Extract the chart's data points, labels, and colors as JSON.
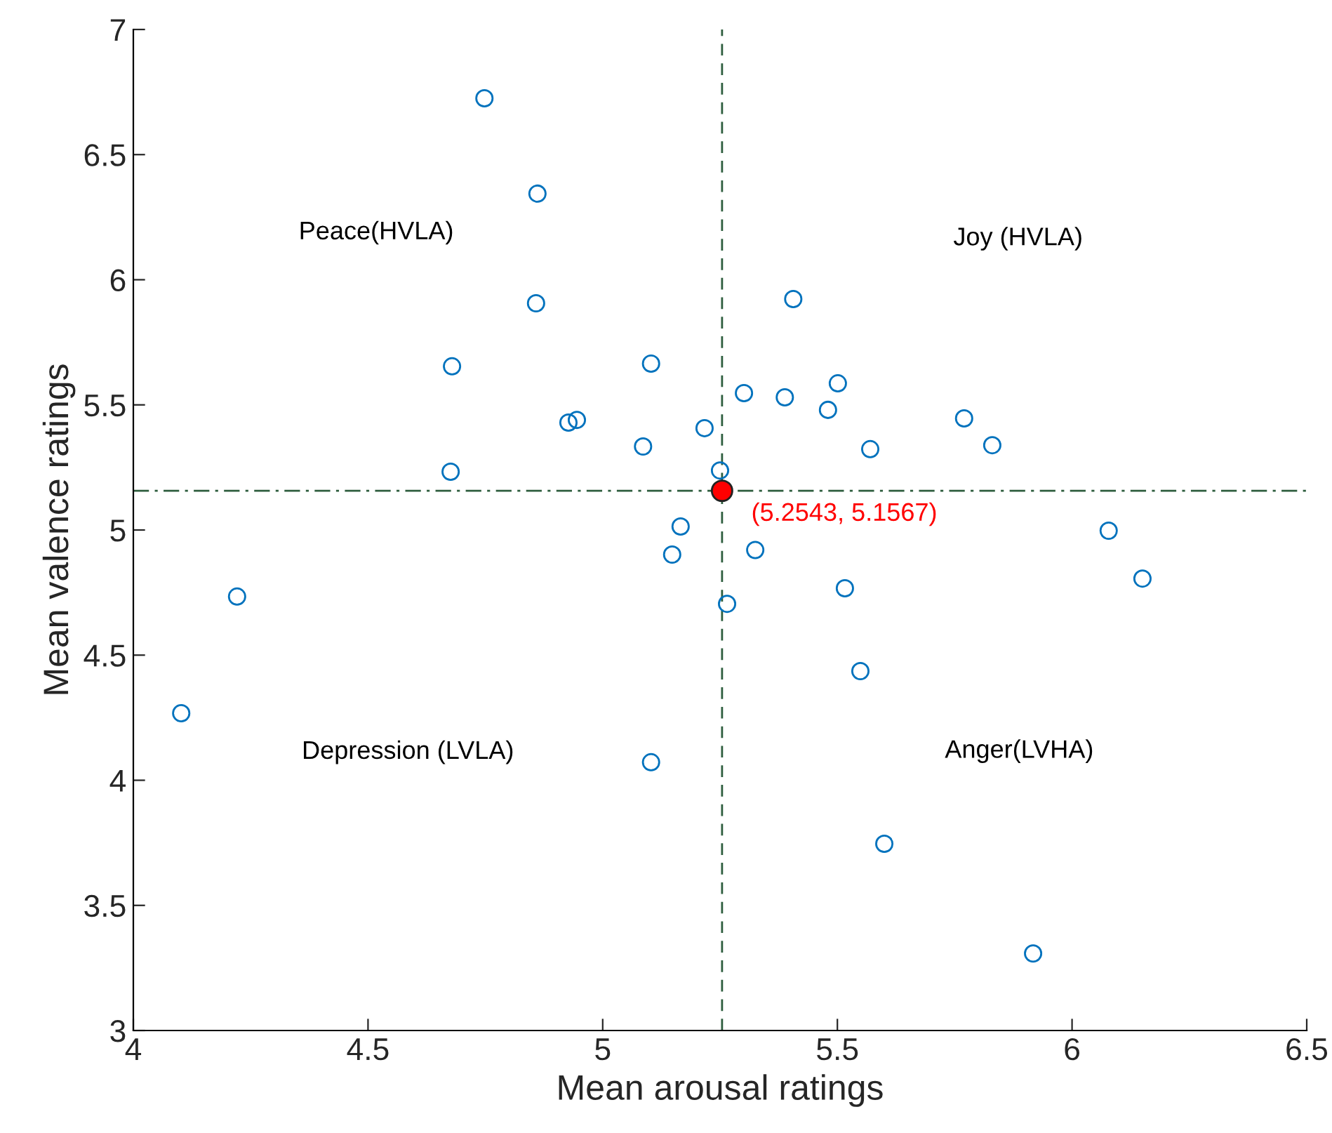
{
  "chart_data": {
    "type": "scatter",
    "xlabel": "Mean arousal ratings",
    "ylabel": "Mean valence ratings",
    "xlim": [
      4,
      6.5
    ],
    "xticks": [
      4,
      4.5,
      5,
      5.5,
      6,
      6.5
    ],
    "ylim": [
      3,
      7
    ],
    "yticks": [
      3,
      3.5,
      4,
      4.5,
      5,
      5.5,
      6,
      6.5,
      7
    ],
    "grid": false,
    "legend": false,
    "marker": "circle",
    "series": [
      {
        "color": "#0072bd",
        "x": [
          4.748,
          4.861,
          4.858,
          4.679,
          4.676,
          4.927,
          4.945,
          5.103,
          5.086,
          5.217,
          5.25,
          5.301,
          5.406,
          5.388,
          5.501,
          5.48,
          5.57,
          5.77,
          5.83,
          6.078,
          6.15,
          5.166,
          5.148,
          5.325,
          5.265,
          5.516,
          5.549,
          5.103,
          5.6,
          5.917,
          4.221,
          4.102
        ],
        "values": [
          6.725,
          6.344,
          5.906,
          5.654,
          5.233,
          5.429,
          5.44,
          5.665,
          5.334,
          5.407,
          5.238,
          5.547,
          5.923,
          5.53,
          5.586,
          5.48,
          5.323,
          5.446,
          5.339,
          4.997,
          4.806,
          5.014,
          4.902,
          4.92,
          4.705,
          4.767,
          4.436,
          4.072,
          3.746,
          3.308,
          4.734,
          4.268
        ]
      },
      {
        "color": "#ff0000",
        "x": [
          5.2543
        ],
        "values": [
          5.1567
        ]
      }
    ],
    "ref_lines": [
      {
        "axis": "x",
        "value": 5.2543,
        "color": "#2e5e3e",
        "line_style": "dashed"
      },
      {
        "axis": "y",
        "value": 5.1567,
        "color": "#2e5e3e",
        "line_style": "dashdot"
      }
    ],
    "annotations": [
      "Peace(HVLA)",
      "Joy (HVLA)",
      "Depression (LVLA)",
      "Anger(LVHA)",
      {
        "text": "(5.2543, 5.1567)",
        "x": 5.2543,
        "y": 5.1567
      }
    ]
  }
}
